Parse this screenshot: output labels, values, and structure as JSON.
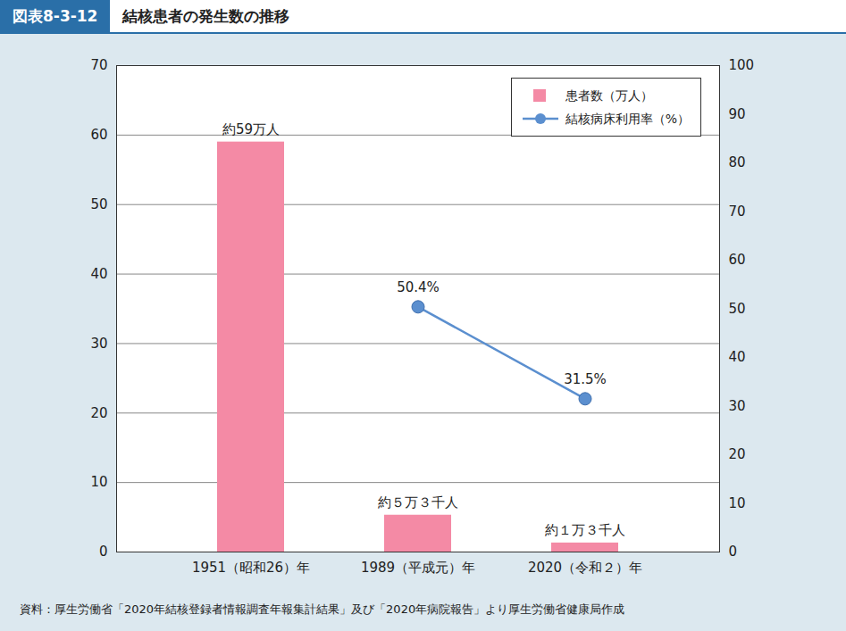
{
  "chart_data": {
    "type": "bar",
    "figure_label": "図表8-3-12",
    "title": "結核患者の発生数の推移",
    "source": "資料：厚生労働省「2020年結核登録者情報調査年報集計結果」及び「2020年病院報告」より厚生労働省健康局作成",
    "categories": [
      "1951（昭和26）年",
      "1989（平成元）年",
      "2020（令和２）年"
    ],
    "series": [
      {
        "name": "患者数（万人）",
        "type": "bar",
        "color": "#f48aa5",
        "axis": "y",
        "values": [
          59,
          5.3,
          1.3
        ],
        "value_labels": [
          "約59万人",
          "約５万３千人",
          "約１万３千人"
        ]
      },
      {
        "name": "結核病床利用率（%）",
        "type": "line",
        "color": "#5b8fcf",
        "axis": "y2",
        "marker": "circle",
        "values": [
          null,
          50.4,
          31.5
        ],
        "value_labels": [
          null,
          "50.4%",
          "31.5%"
        ]
      }
    ],
    "ylim": [
      0,
      70
    ],
    "yticks": [
      0,
      10,
      20,
      30,
      40,
      50,
      60,
      70
    ],
    "y2lim": [
      0,
      100
    ],
    "y2ticks": [
      0,
      10,
      20,
      30,
      40,
      50,
      60,
      70,
      80,
      90,
      100
    ],
    "grid": true,
    "legend": "top-right",
    "data_labels": true
  }
}
